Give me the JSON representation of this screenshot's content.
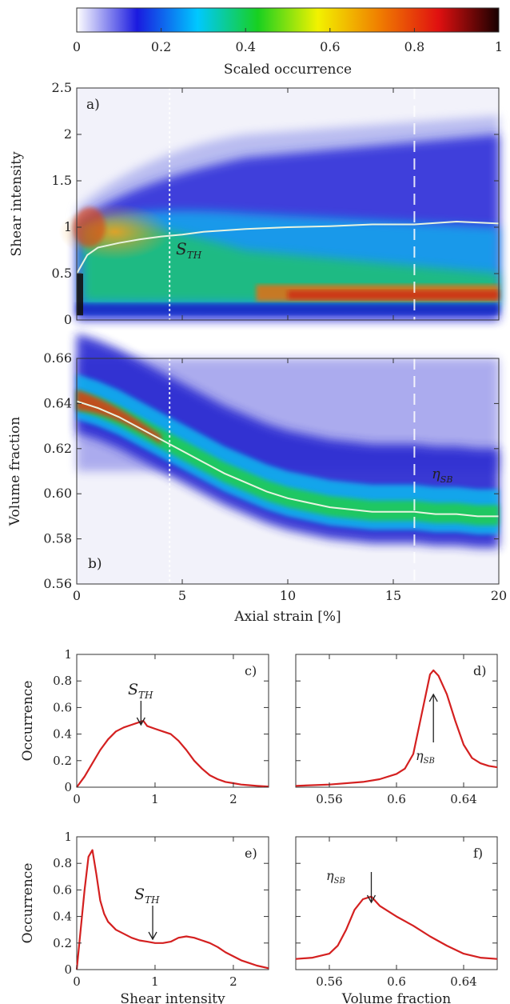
{
  "colorbar": {
    "label": "Scaled occurrence",
    "ticks": [
      "0",
      "0.2",
      "0.4",
      "0.6",
      "0.8",
      "1"
    ],
    "colormap": [
      "#ffffff",
      "#1a1adf",
      "#00c8ff",
      "#18d020",
      "#f2f200",
      "#f08000",
      "#e01010",
      "#180000"
    ]
  },
  "chart_data": [
    {
      "id": "a",
      "panel_label": "a)",
      "type": "heatmap",
      "xlabel": "",
      "ylabel": "Shear intensity",
      "xlim": [
        0,
        20
      ],
      "ylim": [
        0,
        2.5
      ],
      "yticks": [
        "0",
        "0.5",
        "1",
        "1.5",
        "2",
        "2.5"
      ],
      "xticks": [
        "",
        "",
        "",
        "",
        ""
      ],
      "annotation": "STH",
      "series": [
        {
          "x": [
            0,
            0.5,
            1,
            2,
            3,
            4,
            5,
            6,
            8,
            10,
            12,
            14,
            16,
            18,
            20
          ],
          "values": [
            0.5,
            0.7,
            0.78,
            0.83,
            0.87,
            0.9,
            0.92,
            0.95,
            0.98,
            1.0,
            1.01,
            1.03,
            1.03,
            1.06,
            1.04
          ]
        }
      ],
      "vlines": [
        4.4,
        16
      ],
      "colors": {
        "curve": "#e8f4e0",
        "vline": "#ffffff"
      }
    },
    {
      "id": "b",
      "panel_label": "b)",
      "type": "heatmap",
      "xlabel": "Axial strain [%]",
      "ylabel": "Volume fraction",
      "xlim": [
        0,
        20
      ],
      "ylim": [
        0.56,
        0.66
      ],
      "yticks": [
        "0.56",
        "0.58",
        "0.60",
        "0.62",
        "0.64",
        "0.66"
      ],
      "xticks": [
        "0",
        "5",
        "10",
        "15",
        "20"
      ],
      "annotation": "ηSB",
      "series": [
        {
          "x": [
            0,
            1,
            2,
            3,
            4,
            5,
            6,
            7,
            8,
            9,
            10,
            11,
            12,
            13,
            14,
            15,
            16,
            17,
            18,
            19,
            20
          ],
          "values": [
            0.641,
            0.638,
            0.634,
            0.629,
            0.624,
            0.619,
            0.614,
            0.609,
            0.605,
            0.601,
            0.598,
            0.596,
            0.594,
            0.593,
            0.592,
            0.592,
            0.592,
            0.591,
            0.591,
            0.59,
            0.59
          ]
        }
      ],
      "vlines": [
        4.4,
        16
      ],
      "colors": {
        "curve": "#e8f4e0",
        "vline": "#ffffff"
      }
    },
    {
      "id": "c",
      "panel_label": "c)",
      "type": "line",
      "xlabel": "",
      "ylabel": "Occurrence",
      "xlim": [
        0,
        2.45
      ],
      "ylim": [
        0,
        1
      ],
      "xticks": [
        "0",
        "1",
        "2"
      ],
      "yticks": [
        "0",
        "0.2",
        "0.4",
        "0.6",
        "0.8",
        "1"
      ],
      "annotation": "STH",
      "arrow_x": 0.82,
      "series": [
        {
          "x": [
            0,
            0.1,
            0.2,
            0.3,
            0.4,
            0.5,
            0.6,
            0.7,
            0.8,
            0.85,
            0.9,
            1.0,
            1.1,
            1.2,
            1.3,
            1.4,
            1.5,
            1.6,
            1.7,
            1.8,
            1.9,
            2.0,
            2.1,
            2.2,
            2.3,
            2.45
          ],
          "values": [
            0.0,
            0.08,
            0.18,
            0.28,
            0.36,
            0.42,
            0.45,
            0.47,
            0.49,
            0.5,
            0.46,
            0.44,
            0.42,
            0.4,
            0.35,
            0.28,
            0.2,
            0.14,
            0.09,
            0.06,
            0.04,
            0.03,
            0.02,
            0.015,
            0.01,
            0.005
          ]
        }
      ],
      "colors": {
        "line": "#d42020"
      }
    },
    {
      "id": "d",
      "panel_label": "d)",
      "type": "line",
      "xlabel": "",
      "ylabel": "",
      "xlim": [
        0.54,
        0.66
      ],
      "ylim": [
        0,
        1
      ],
      "xticks": [
        "0.56",
        "0.6",
        "0.64"
      ],
      "yticks": [
        "",
        "",
        "",
        "",
        "",
        ""
      ],
      "annotation": "ηSB",
      "arrow_x": 0.622,
      "series": [
        {
          "x": [
            0.54,
            0.56,
            0.58,
            0.59,
            0.6,
            0.605,
            0.61,
            0.615,
            0.62,
            0.622,
            0.625,
            0.63,
            0.635,
            0.64,
            0.645,
            0.65,
            0.655,
            0.66
          ],
          "values": [
            0.01,
            0.02,
            0.04,
            0.06,
            0.1,
            0.14,
            0.25,
            0.55,
            0.85,
            0.88,
            0.84,
            0.7,
            0.5,
            0.32,
            0.22,
            0.18,
            0.16,
            0.15
          ]
        }
      ],
      "colors": {
        "line": "#d42020"
      }
    },
    {
      "id": "e",
      "panel_label": "e)",
      "type": "line",
      "xlabel": "Shear intensity",
      "ylabel": "Occurrence",
      "xlim": [
        0,
        2.45
      ],
      "ylim": [
        0,
        1
      ],
      "xticks": [
        "0",
        "1",
        "2"
      ],
      "yticks": [
        "0",
        "0.2",
        "0.4",
        "0.6",
        "0.8",
        "1"
      ],
      "annotation": "STH",
      "arrow_x": 0.97,
      "series": [
        {
          "x": [
            0,
            0.05,
            0.1,
            0.15,
            0.2,
            0.25,
            0.3,
            0.35,
            0.4,
            0.5,
            0.6,
            0.7,
            0.8,
            0.9,
            1.0,
            1.1,
            1.2,
            1.3,
            1.4,
            1.5,
            1.6,
            1.7,
            1.8,
            1.9,
            2.0,
            2.1,
            2.2,
            2.3,
            2.45
          ],
          "values": [
            0.0,
            0.3,
            0.6,
            0.85,
            0.9,
            0.72,
            0.52,
            0.42,
            0.36,
            0.3,
            0.27,
            0.24,
            0.22,
            0.21,
            0.2,
            0.2,
            0.21,
            0.24,
            0.25,
            0.24,
            0.22,
            0.2,
            0.17,
            0.13,
            0.1,
            0.07,
            0.05,
            0.03,
            0.01
          ]
        }
      ],
      "colors": {
        "line": "#d42020"
      }
    },
    {
      "id": "f",
      "panel_label": "f)",
      "type": "line",
      "xlabel": "Volume fraction",
      "ylabel": "",
      "xlim": [
        0.54,
        0.66
      ],
      "ylim": [
        0,
        1
      ],
      "xticks": [
        "0.56",
        "0.6",
        "0.64"
      ],
      "yticks": [
        "",
        "",
        "",
        "",
        "",
        ""
      ],
      "annotation": "ηSB",
      "arrow_x": 0.585,
      "series": [
        {
          "x": [
            0.54,
            0.55,
            0.56,
            0.565,
            0.57,
            0.575,
            0.58,
            0.585,
            0.59,
            0.6,
            0.61,
            0.62,
            0.63,
            0.64,
            0.65,
            0.66
          ],
          "values": [
            0.08,
            0.09,
            0.12,
            0.18,
            0.3,
            0.45,
            0.53,
            0.55,
            0.48,
            0.4,
            0.33,
            0.25,
            0.18,
            0.12,
            0.09,
            0.08
          ]
        }
      ],
      "colors": {
        "line": "#d42020"
      }
    }
  ]
}
